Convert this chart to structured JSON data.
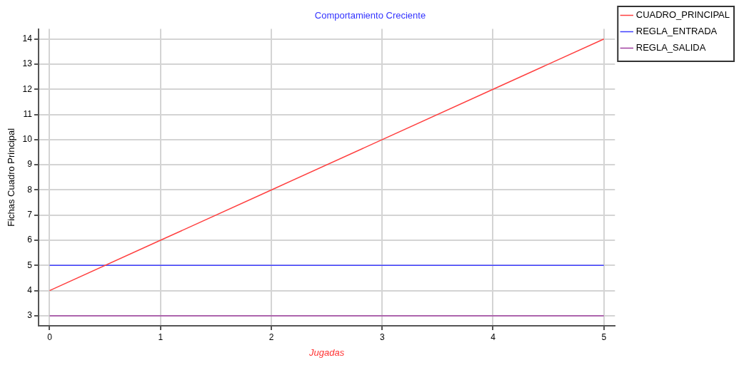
{
  "chart_data": {
    "type": "line",
    "title": "Comportamiento Creciente",
    "xlabel": "Jugadas",
    "ylabel": "Fichas Cuadro Principal",
    "x": [
      0,
      1,
      2,
      3,
      4,
      5
    ],
    "series": [
      {
        "name": "CUADRO_PRINCIPAL",
        "color": "#ff4040",
        "values": [
          4,
          6,
          8,
          10,
          12,
          14
        ]
      },
      {
        "name": "REGLA_ENTRADA",
        "color": "#4040ff",
        "values": [
          5,
          5,
          5,
          5,
          5,
          5
        ]
      },
      {
        "name": "REGLA_SALIDA",
        "color": "#a040a0",
        "values": [
          3,
          3,
          3,
          3,
          3,
          3
        ]
      }
    ],
    "xlim": [
      -0.1,
      5.1
    ],
    "xticks": [
      0,
      1,
      2,
      3,
      4,
      5
    ],
    "ylim": [
      2.6,
      14.4
    ],
    "yticks": [
      3,
      4,
      5,
      6,
      7,
      8,
      9,
      10,
      11,
      12,
      13,
      14
    ],
    "grid": true,
    "legend": "top right",
    "marker": "none",
    "line_style": "solid"
  }
}
